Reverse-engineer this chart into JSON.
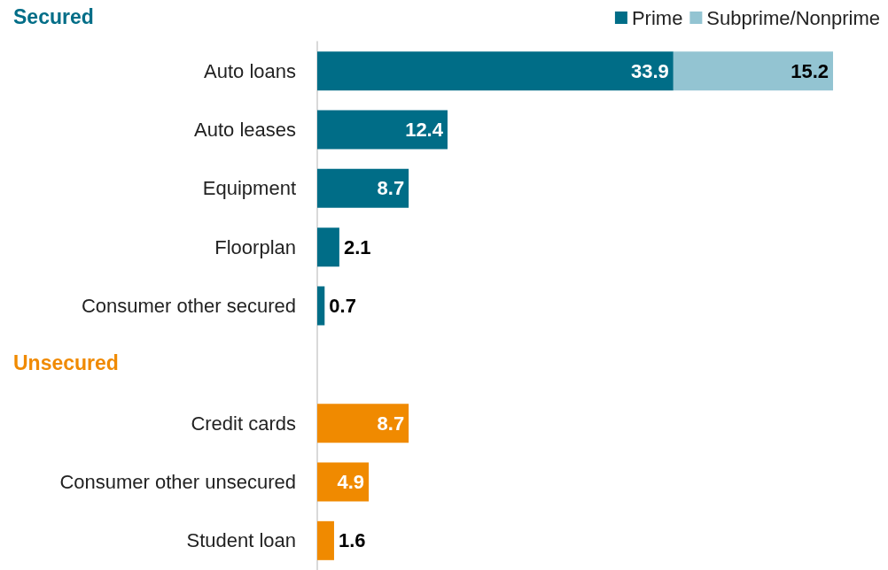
{
  "chart_data": {
    "type": "bar",
    "orientation": "horizontal",
    "stacked": true,
    "data_labels": true,
    "legend": "top right",
    "grid": false,
    "categories": [
      "Auto loans",
      "Auto leases",
      "Equipment",
      "Floorplan",
      "Consumer other secured",
      null,
      "Credit cards",
      "Consumer other unsecured",
      "Student loan"
    ],
    "series": [
      {
        "name": "Prime",
        "color": "#006d87",
        "values": [
          33.9,
          12.4,
          8.7,
          2.1,
          0.7,
          null,
          8.7,
          4.9,
          1.6
        ],
        "colors": [
          "#006d87",
          "#006d87",
          "#006d87",
          "#006d87",
          "#006d87",
          null,
          "#f08a00",
          "#f08a00",
          "#f08a00"
        ]
      },
      {
        "name": "Subprime/Nonprime",
        "color": "#93c4d2",
        "values": [
          15.2,
          null,
          null,
          null,
          null,
          null,
          null,
          null,
          null
        ]
      }
    ],
    "annotations": [
      "Secured",
      "Unsecured"
    ]
  }
}
